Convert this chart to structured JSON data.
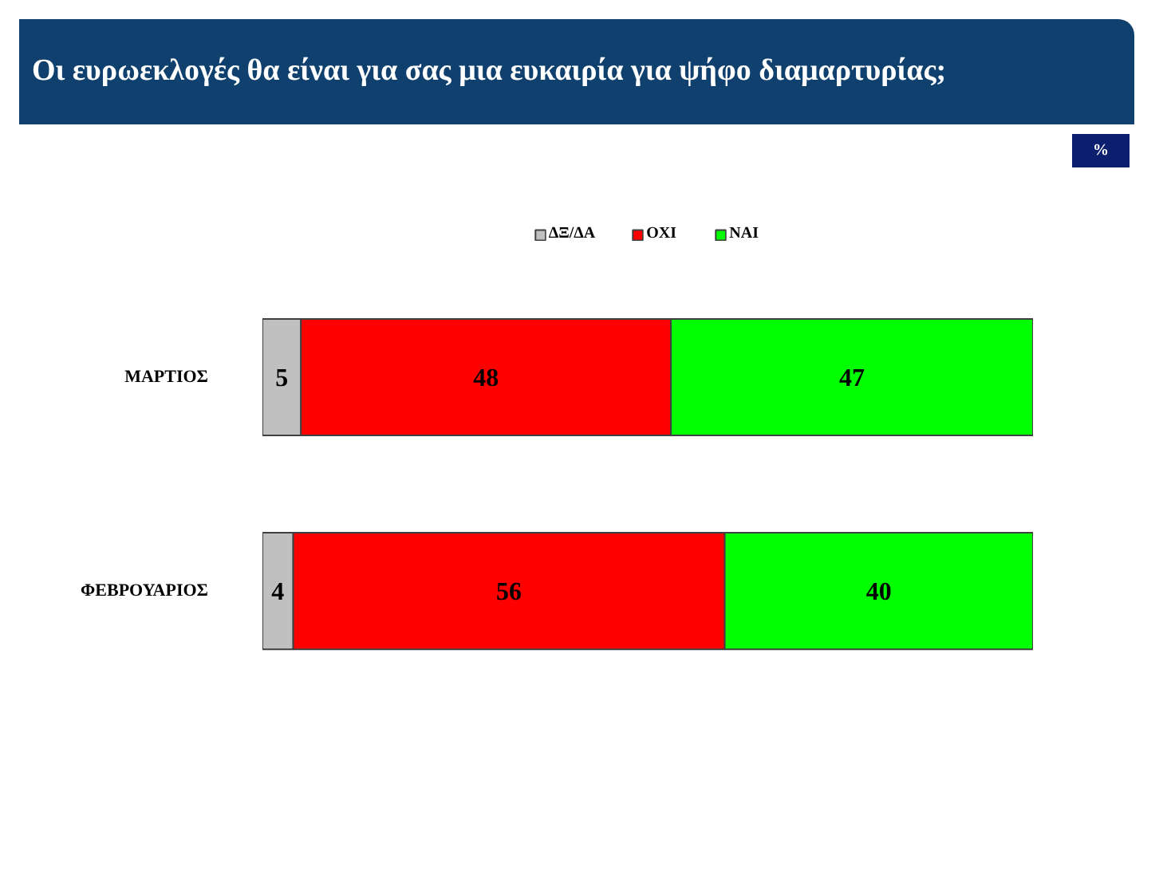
{
  "chart_data": {
    "type": "bar",
    "orientation": "horizontal",
    "stacked": true,
    "title": "Οι ευρωεκλογές θα είναι για σας μια ευκαιρία για ψήφο διαμαρτυρίας;",
    "annotations": [
      "%"
    ],
    "categories": [
      "ΜΑΡΤΙΟΣ",
      "ΦΕΒΡΟΥΑΡΙΟΣ"
    ],
    "series": [
      {
        "name": "ΔΞ/ΔΑ",
        "color": "#c0c0c0",
        "values": [
          5,
          4
        ]
      },
      {
        "name": "ΟΧΙ",
        "color": "#ff0000",
        "values": [
          48,
          56
        ]
      },
      {
        "name": "ΝΑΙ",
        "color": "#00ff00",
        "values": [
          47,
          40
        ]
      }
    ],
    "data_labels": true,
    "legend": "top",
    "tick_labels": "y"
  }
}
